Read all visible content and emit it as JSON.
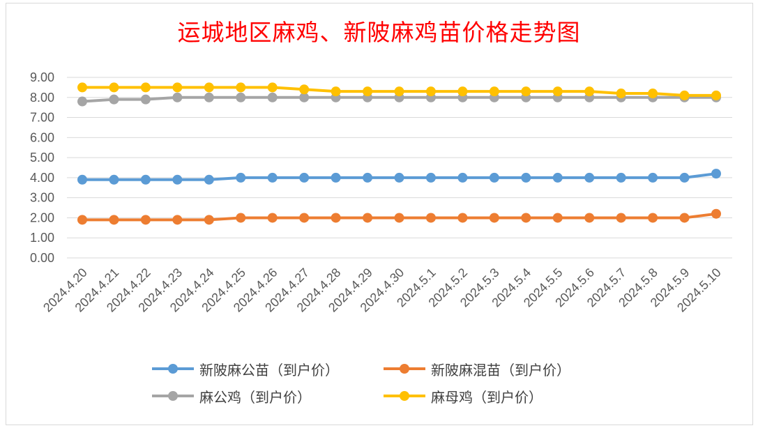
{
  "chart_data": {
    "type": "line",
    "title": "运城地区麻鸡、新陂麻鸡苗价格走势图",
    "xlabel": "",
    "ylabel": "",
    "ylim": [
      0,
      9
    ],
    "y_ticks": [
      "0.00",
      "1.00",
      "2.00",
      "3.00",
      "4.00",
      "5.00",
      "6.00",
      "7.00",
      "8.00",
      "9.00"
    ],
    "categories": [
      "2024.4.20",
      "2024.4.21",
      "2024.4.22",
      "2024.4.23",
      "2024.4.24",
      "2024.4.25",
      "2024.4.26",
      "2024.4.27",
      "2024.4.28",
      "2024.4.29",
      "2024.4.30",
      "2024.5.1",
      "2024.5.2",
      "2024.5.3",
      "2024.5.4",
      "2024.5.5",
      "2024.5.6",
      "2024.5.7",
      "2024.5.8",
      "2024.5.9",
      "2024.5.10"
    ],
    "grid": true,
    "legend_position": "bottom",
    "series": [
      {
        "name": "新陂麻公苗（到户价）",
        "color": "#5b9bd5",
        "values": [
          3.9,
          3.9,
          3.9,
          3.9,
          3.9,
          4.0,
          4.0,
          4.0,
          4.0,
          4.0,
          4.0,
          4.0,
          4.0,
          4.0,
          4.0,
          4.0,
          4.0,
          4.0,
          4.0,
          4.0,
          4.2
        ]
      },
      {
        "name": "新陂麻混苗（到户价）",
        "color": "#ed7d31",
        "values": [
          1.9,
          1.9,
          1.9,
          1.9,
          1.9,
          2.0,
          2.0,
          2.0,
          2.0,
          2.0,
          2.0,
          2.0,
          2.0,
          2.0,
          2.0,
          2.0,
          2.0,
          2.0,
          2.0,
          2.0,
          2.2
        ]
      },
      {
        "name": "麻公鸡（到户价）",
        "color": "#a5a5a5",
        "values": [
          7.8,
          7.9,
          7.9,
          8.0,
          8.0,
          8.0,
          8.0,
          8.0,
          8.0,
          8.0,
          8.0,
          8.0,
          8.0,
          8.0,
          8.0,
          8.0,
          8.0,
          8.0,
          8.0,
          8.0,
          8.0
        ]
      },
      {
        "name": "麻母鸡（到户价）",
        "color": "#ffc000",
        "values": [
          8.5,
          8.5,
          8.5,
          8.5,
          8.5,
          8.5,
          8.5,
          8.4,
          8.3,
          8.3,
          8.3,
          8.3,
          8.3,
          8.3,
          8.3,
          8.3,
          8.3,
          8.2,
          8.2,
          8.1,
          8.1
        ]
      }
    ]
  }
}
